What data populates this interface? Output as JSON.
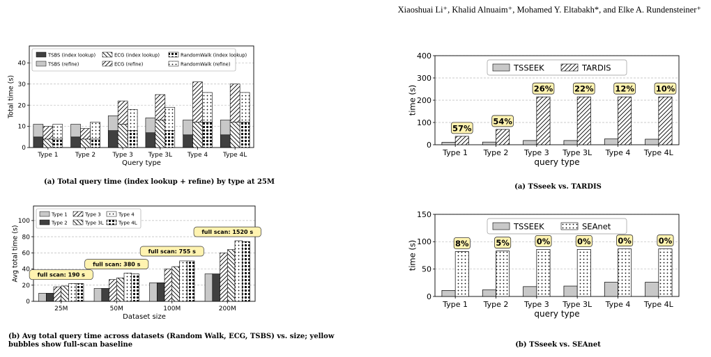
{
  "header": {
    "authors": "Xiaoshuai Li⁺, Khalid Alnuaim⁺, Mohamed Y. Eltabakh*, and Elke A. Rundensteiner⁺"
  },
  "captions": {
    "a_left": "(a) Total query time (index lookup + refine) by type at 25M",
    "b_left": "(b) Avg total query time across datasets (Random Walk, ECG, TSBS) vs. size; yellow bubbles show full-scan baseline",
    "a_right": "(a) TSseek vs. TARDIS",
    "b_right": "(b) TSseek vs. SEAnet"
  },
  "colors": {
    "dark": "#404040",
    "light": "#c8c8c8",
    "bubble": "#fff3b0",
    "bubble_border": "#333333",
    "grid": "#bbbbbb"
  },
  "chart_data": [
    {
      "id": "tl",
      "type": "bar",
      "stacked": true,
      "categories": [
        "Type 1",
        "Type 2",
        "Type 3",
        "Type 3L",
        "Type 4",
        "Type 4L"
      ],
      "xlabel": "Query type",
      "ylabel": "Total time (s)",
      "ylim": [
        0,
        48
      ],
      "yticks": [
        0,
        10,
        20,
        30,
        40
      ],
      "grid": true,
      "legend": {
        "position": "top-left",
        "columns": 3
      },
      "groups": [
        {
          "name": "TSBS",
          "lookup_label": "TSBS (index lookup)",
          "refine_label": "TSBS (refine)",
          "lookup_fill": "dark",
          "refine_fill": "light",
          "lookup": [
            5,
            5,
            8,
            7,
            6,
            6
          ],
          "refine": [
            6,
            6,
            7,
            7,
            7,
            7
          ]
        },
        {
          "name": "ECG",
          "lookup_label": "ECG (index lookup)",
          "refine_label": "ECG (refine)",
          "lookup_fill": "backslash",
          "refine_fill": "slash",
          "lookup": [
            4,
            4,
            11,
            13,
            12,
            12
          ],
          "refine": [
            6,
            5,
            11,
            12,
            19,
            18
          ]
        },
        {
          "name": "RandomWalk",
          "lookup_label": "RandomWalk (index lookup)",
          "refine_label": "RandomWalk (refine)",
          "lookup_fill": "bigdots",
          "refine_fill": "smalldots",
          "lookup": [
            4,
            4,
            8,
            8,
            12,
            12
          ],
          "refine": [
            7,
            8,
            10,
            11,
            14,
            14
          ]
        }
      ]
    },
    {
      "id": "bl",
      "type": "bar",
      "categories": [
        "25M",
        "50M",
        "100M",
        "200M"
      ],
      "xlabel": "Dataset size",
      "ylabel": "Avg total time (s)",
      "ylim": [
        0,
        118
      ],
      "yticks": [
        0,
        20,
        40,
        60,
        80,
        100
      ],
      "grid": true,
      "legend": {
        "position": "top-left",
        "columns": 3
      },
      "series": [
        {
          "name": "Type 1",
          "fill": "light",
          "values": [
            10,
            16,
            23,
            34
          ]
        },
        {
          "name": "Type 2",
          "fill": "dark",
          "values": [
            10,
            16,
            23,
            34
          ]
        },
        {
          "name": "Type 3",
          "fill": "slash",
          "values": [
            18,
            27,
            40,
            60
          ]
        },
        {
          "name": "Type 3L",
          "fill": "backslash",
          "values": [
            19,
            29,
            43,
            64
          ]
        },
        {
          "name": "Type 4",
          "fill": "smalldots",
          "values": [
            22,
            35,
            50,
            75
          ]
        },
        {
          "name": "Type 4L",
          "fill": "bigdots",
          "values": [
            22,
            34,
            50,
            74
          ]
        }
      ],
      "annotations": [
        {
          "text": "full scan: 190 s",
          "category": "25M",
          "y": 33
        },
        {
          "text": "full scan: 380 s",
          "category": "50M",
          "y": 46
        },
        {
          "text": "full scan: 755 s",
          "category": "100M",
          "y": 62
        },
        {
          "text": "full scan: 1520 s",
          "category": "200M",
          "y": 86
        }
      ]
    },
    {
      "id": "tr",
      "type": "bar",
      "categories": [
        "Type 1",
        "Type 2",
        "Type 3",
        "Type 3L",
        "Type 4",
        "Type 4L"
      ],
      "xlabel": "query type",
      "ylabel": "time (s)",
      "ylim": [
        0,
        400
      ],
      "yticks": [
        0,
        100,
        200,
        300,
        400
      ],
      "grid": true,
      "legend": {
        "position": "top-center",
        "columns": 2
      },
      "series": [
        {
          "name": "TSSEEK",
          "fill": "light",
          "values": [
            11,
            12,
            19,
            19,
            26,
            25
          ]
        },
        {
          "name": "TARDIS",
          "fill": "slash",
          "values": [
            38,
            69,
            215,
            215,
            215,
            215
          ]
        }
      ],
      "data_labels": [
        "57%",
        "54%",
        "26%",
        "22%",
        "12%",
        "10%"
      ]
    },
    {
      "id": "br",
      "type": "bar",
      "categories": [
        "Type 1",
        "Type 2",
        "Type 3",
        "Type 3L",
        "Type 4",
        "Type 4L"
      ],
      "xlabel": "query type",
      "ylabel": "time (s)",
      "ylim": [
        0,
        150
      ],
      "yticks": [
        0,
        50,
        100,
        150
      ],
      "grid": true,
      "legend": {
        "position": "top-center",
        "columns": 2
      },
      "series": [
        {
          "name": "TSSEEK",
          "fill": "light",
          "values": [
            11,
            12,
            18,
            19,
            26,
            26
          ]
        },
        {
          "name": "SEAnet",
          "fill": "smalldots",
          "values": [
            82,
            83,
            86,
            86,
            87,
            87
          ]
        }
      ],
      "data_labels": [
        "8%",
        "5%",
        "0%",
        "0%",
        "0%",
        "0%"
      ]
    }
  ]
}
